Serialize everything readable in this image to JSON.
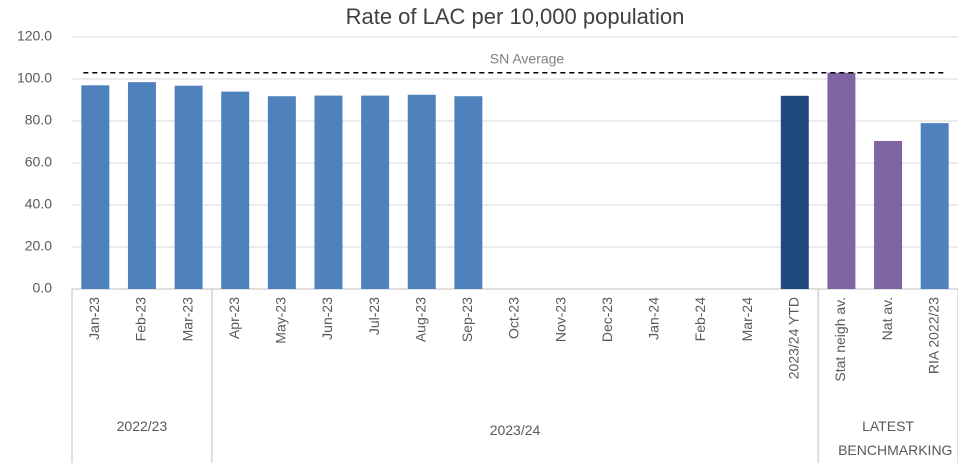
{
  "chart_data": {
    "type": "bar",
    "title": "Rate of LAC per 10,000 population",
    "categories": [
      "Jan-23",
      "Feb-23",
      "Mar-23",
      "Apr-23",
      "May-23",
      "Jun-23",
      "Jul-23",
      "Aug-23",
      "Sep-23",
      "Oct-23",
      "Nov-23",
      "Dec-23",
      "Jan-24",
      "Feb-24",
      "Mar-24",
      "2023/24 YTD",
      "Stat neigh av.",
      "Nat av.",
      "RIA 2022/23"
    ],
    "values": [
      97.0,
      98.5,
      96.8,
      94.0,
      91.8,
      92.1,
      92.1,
      92.5,
      91.8,
      null,
      null,
      null,
      null,
      null,
      null,
      92.0,
      103.0,
      70.5,
      79.0
    ],
    "colors": [
      "#4f81bd",
      "#4f81bd",
      "#4f81bd",
      "#4f81bd",
      "#4f81bd",
      "#4f81bd",
      "#4f81bd",
      "#4f81bd",
      "#4f81bd",
      "#4f81bd",
      "#4f81bd",
      "#4f81bd",
      "#4f81bd",
      "#4f81bd",
      "#4f81bd",
      "#1f497d",
      "#8064a2",
      "#8064a2",
      "#4f81bd"
    ],
    "groups": [
      {
        "label": "2022/23",
        "start": 0,
        "end": 2
      },
      {
        "label": "2023/24",
        "start": 3,
        "end": 15
      },
      {
        "label": "LATEST BENCHMARKING",
        "start": 16,
        "end": 18
      }
    ],
    "reference_line": {
      "label": "SN Average",
      "value": 103.0
    },
    "ylim": [
      0,
      120
    ],
    "yticks": [
      {
        "value": 0,
        "label": "0.0"
      },
      {
        "value": 20,
        "label": "20.0"
      },
      {
        "value": 40,
        "label": "40.0"
      },
      {
        "value": 60,
        "label": "60.0"
      },
      {
        "value": 80,
        "label": "80.0"
      },
      {
        "value": 100,
        "label": "100.0"
      },
      {
        "value": 120,
        "label": "120.0"
      }
    ],
    "grid": true
  }
}
